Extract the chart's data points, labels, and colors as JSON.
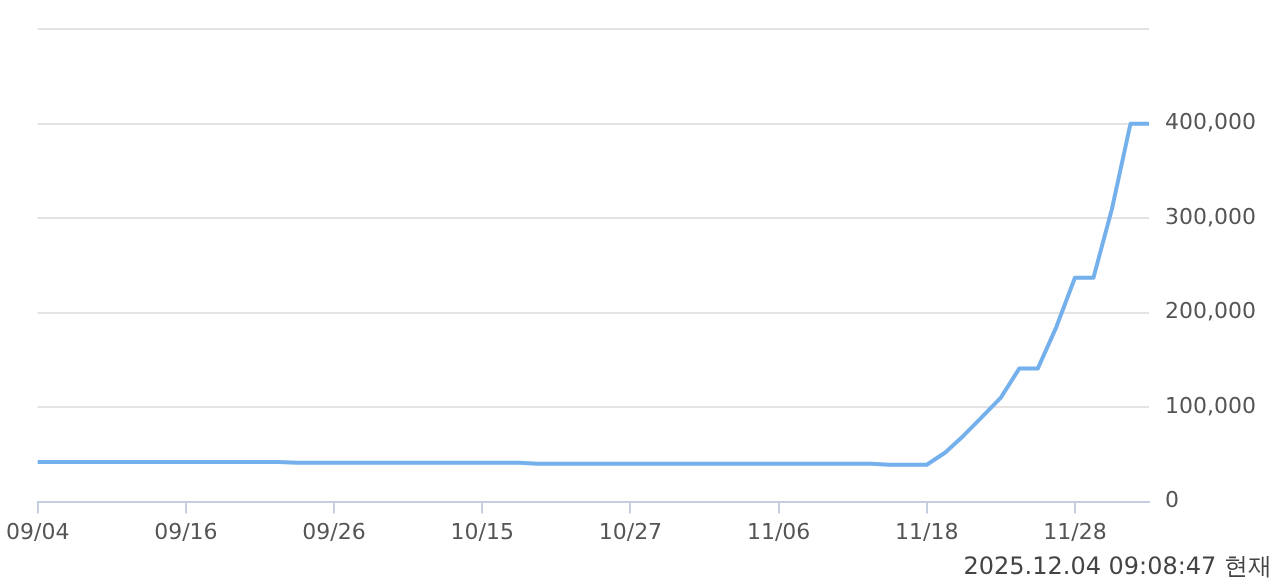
{
  "chart_data": {
    "type": "line",
    "categories": [
      "09/04",
      null,
      null,
      null,
      null,
      null,
      null,
      null,
      "09/16",
      null,
      null,
      null,
      null,
      null,
      null,
      null,
      "09/26",
      null,
      null,
      null,
      null,
      null,
      null,
      null,
      "10/15",
      null,
      null,
      null,
      null,
      null,
      null,
      null,
      "10/27",
      null,
      null,
      null,
      null,
      null,
      null,
      null,
      "11/06",
      null,
      null,
      null,
      null,
      null,
      null,
      null,
      "11/18",
      null,
      null,
      null,
      null,
      null,
      null,
      null,
      "11/28",
      null,
      null,
      null,
      null
    ],
    "series": [
      {
        "color": "#74b0eb",
        "values": [
          42000,
          42000,
          42000,
          42000,
          42000,
          42000,
          42000,
          42000,
          42000,
          42000,
          42000,
          42000,
          42000,
          42000,
          41000,
          41000,
          41000,
          41000,
          41000,
          41000,
          41000,
          41000,
          41000,
          41000,
          41000,
          41000,
          41000,
          40000,
          40000,
          40000,
          40000,
          40000,
          40000,
          40000,
          40000,
          40000,
          40000,
          40000,
          40000,
          40000,
          40000,
          40000,
          40000,
          40000,
          40000,
          40000,
          39000,
          39000,
          39000,
          52000,
          70000,
          90000,
          110000,
          141000,
          141000,
          185000,
          237000,
          237000,
          310000,
          400000,
          400000
        ]
      }
    ],
    "ylim": [
      0,
      500000
    ],
    "yticks": [
      0,
      {
        "value": 100000,
        "label": "100,000"
      },
      {
        "value": 200000,
        "label": "200,000"
      },
      {
        "value": 300000,
        "label": "300,000"
      },
      {
        "value": 400000,
        "label": "400,000"
      },
      {
        "value": 500000,
        "label": null
      }
    ],
    "grid": "y",
    "legend": false,
    "marker": "none",
    "line_style": "solid",
    "annotations": [
      "2025.12.04 09:08:47 현재"
    ]
  }
}
